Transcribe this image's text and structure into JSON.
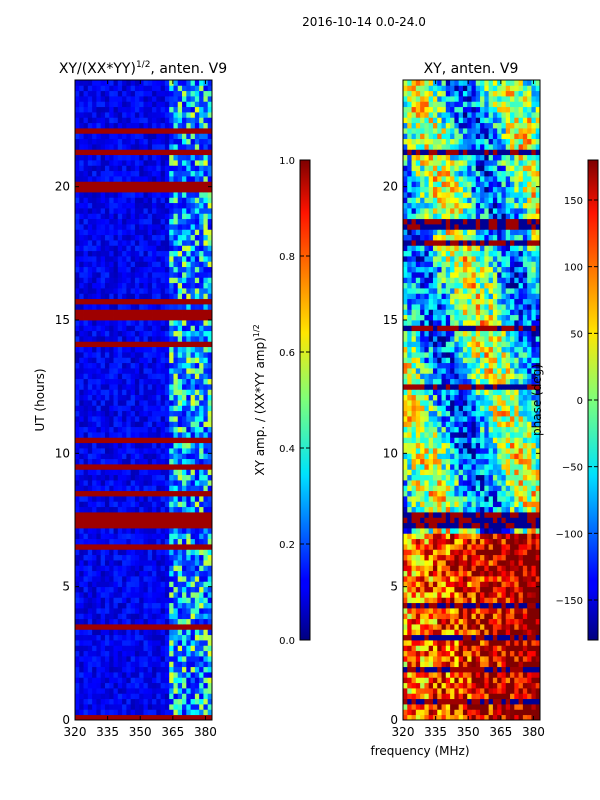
{
  "figure": {
    "suptitle": "2016-10-14 0.0-24.0",
    "xlabel": "frequency (MHz)"
  },
  "chart_data": [
    {
      "type": "heatmap",
      "title": "XY/(XX*YY)^{1/2}, anten. V9",
      "title_main": "XY/(XX*YY)",
      "title_sup": "1/2",
      "title_tail": ", anten. V9",
      "xlabel": "frequency (MHz)",
      "ylabel": "UT (hours)",
      "xlim": [
        320,
        383
      ],
      "ylim": [
        0,
        24
      ],
      "xticks": [
        320,
        335,
        350,
        365,
        380
      ],
      "yticks": [
        0,
        5,
        10,
        15,
        20
      ],
      "colormap": "jet",
      "bright_band_freq": [
        363,
        382
      ],
      "saturated_rows_ut": [
        0.1,
        7.4,
        7.6,
        15.2,
        15.3
      ],
      "colorbar": {
        "label": "XY amp. / (XX*YY amp)^{1/2}",
        "label_main": "XY amp. / (XX*YY amp)",
        "label_sup": "1/2",
        "range": [
          0.0,
          1.0
        ],
        "ticks": [
          "0.0",
          "0.2",
          "0.4",
          "0.6",
          "0.8",
          "1.0"
        ]
      }
    },
    {
      "type": "heatmap",
      "title": "XY, anten. V9",
      "xlabel": "frequency (MHz)",
      "ylabel": "",
      "xlim": [
        320,
        383
      ],
      "ylim": [
        0,
        24
      ],
      "xticks": [
        320,
        335,
        350,
        365,
        380
      ],
      "yticks": [
        0,
        5,
        10,
        15,
        20
      ],
      "colormap": "jet",
      "colorbar": {
        "label": "phase (deg)",
        "range": [
          -180,
          180
        ],
        "ticks": [
          "−150",
          "−100",
          "−50",
          "0",
          "50",
          "100",
          "150"
        ]
      }
    }
  ]
}
